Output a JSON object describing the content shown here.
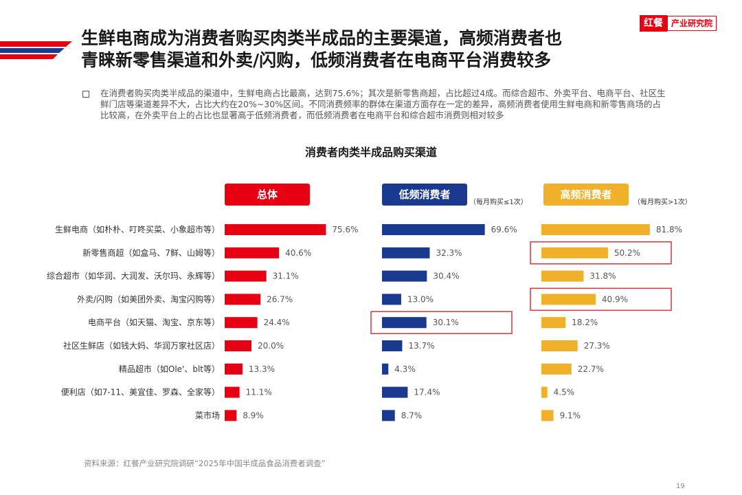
{
  "header": {
    "title_lines": [
      "生鲜电商成为消费者购买肉类半成品的主要渠道，高频消费者也",
      "青睐新零售渠道和外卖/闪购，低频消费者在电商平台消费较多"
    ],
    "logo_mark": "红餐",
    "logo_text": "产业研究院"
  },
  "summary": "在消费者购买肉类半成品的渠道中，生鲜电商占比最高，达到75.6%；其次是新零售商超，占比超过4成。而综合超市、外卖平台、电商平台、社区生鲜门店等渠道差异不大，占比大约在20%~30%区间。不同消费频率的群体在渠道方面存在一定的差异，高频消费者使用生鲜电商和新零售商场的占比较高，在外卖平台上的占比也显著高于低频消费者，而低频消费者在电商平台和综合超市消费则相对较多",
  "footnote": "资料来源：红餐产业研究院调研“2025年中国半成品食品消费者调查”",
  "page_number": "19",
  "colors": {
    "overall": "#e60012",
    "low": "#1a3a8f",
    "high": "#f0b02a",
    "highlight_box": "#e0303a"
  },
  "chart_data": {
    "type": "bar",
    "orientation": "horizontal",
    "title": "消费者肉类半成品购买渠道",
    "unit": "%",
    "categories": [
      "生鲜电商（如朴朴、叮咚买菜、小象超市等）",
      "新零售商超（如盒马、7鲜、山姆等）",
      "综合超市（如华润、大润发、沃尔玛、永辉等）",
      "外卖/闪购（如美团外卖、淘宝闪购等）",
      "电商平台（如天猫、淘宝、京东等）",
      "社区生鲜店（如钱大妈、华润万家社区店）",
      "精品超市（如Ole'、blt等）",
      "便利店（如7-11、美宜佳、罗森、全家等）",
      "菜市场"
    ],
    "series": [
      {
        "name": "总体",
        "note": "",
        "color": "#e60012",
        "values": [
          75.6,
          40.6,
          31.1,
          26.7,
          24.4,
          20.0,
          13.3,
          11.1,
          8.9
        ],
        "labels": [
          "75.6%",
          "40.6%",
          "31.1%",
          "26.7%",
          "24.4%",
          "20.0%",
          "13.3%",
          "11.1%",
          "8.9%"
        ],
        "highlighted": []
      },
      {
        "name": "低频消费者",
        "note": "（每月购买≤1次）",
        "color": "#1a3a8f",
        "values": [
          69.6,
          32.3,
          30.4,
          13.0,
          30.1,
          13.7,
          4.3,
          17.4,
          8.7
        ],
        "labels": [
          "69.6%",
          "32.3%",
          "30.4%",
          "13.0%",
          "30.1%",
          "13.7%",
          "4.3%",
          "17.4%",
          "8.7%"
        ],
        "highlighted": [
          4
        ]
      },
      {
        "name": "高频消费者",
        "note": "（每月购买>1次）",
        "color": "#f0b02a",
        "values": [
          81.8,
          50.2,
          31.8,
          40.9,
          18.2,
          27.3,
          22.7,
          4.5,
          9.1
        ],
        "labels": [
          "81.8%",
          "50.2%",
          "31.8%",
          "40.9%",
          "18.2%",
          "27.3%",
          "22.7%",
          "4.5%",
          "9.1%"
        ],
        "highlighted": [
          1,
          3
        ]
      }
    ]
  }
}
